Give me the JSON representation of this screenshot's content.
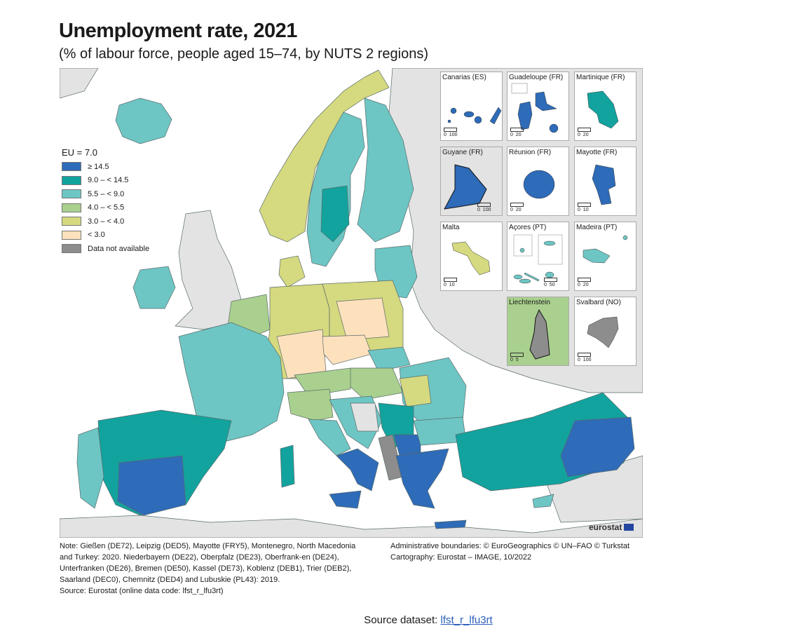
{
  "title": "Unemployment rate, 2021",
  "subtitle": "(% of labour force, people aged 15–74, by NUTS 2 regions)",
  "legend": {
    "header": "EU = 7.0",
    "classes": [
      {
        "label": "≥ 14.5",
        "color": "#2e6bb8"
      },
      {
        "label": "9.0 – < 14.5",
        "color": "#12a39e"
      },
      {
        "label": "5.5 – < 9.0",
        "color": "#6dc6c4"
      },
      {
        "label": "4.0 – < 5.5",
        "color": "#a9d08e"
      },
      {
        "label": "3.0 – < 4.0",
        "color": "#d5d97f"
      },
      {
        "label": "< 3.0",
        "color": "#fde1bd"
      },
      {
        "label": "Data not available",
        "color": "#8d8d8d"
      }
    ]
  },
  "insets": [
    {
      "name": "Canarias (ES)",
      "scale": [
        "0",
        "100"
      ],
      "class": 0
    },
    {
      "name": "Guadeloupe (FR)",
      "scale": [
        "0",
        "20"
      ],
      "class": 0
    },
    {
      "name": "Martinique (FR)",
      "scale": [
        "0",
        "20"
      ],
      "class": 1
    },
    {
      "name": "Guyane (FR)",
      "scale": [
        "0",
        "100"
      ],
      "class": 0
    },
    {
      "name": "Réunion (FR)",
      "scale": [
        "0",
        "20"
      ],
      "class": 0
    },
    {
      "name": "Mayotte (FR)",
      "scale": [
        "0",
        "10"
      ],
      "class": 0
    },
    {
      "name": "Malta",
      "scale": [
        "0",
        "10"
      ],
      "class": 4
    },
    {
      "name": "Açores (PT)",
      "scale": [
        "0",
        "50"
      ],
      "class": 2
    },
    {
      "name": "Madeira (PT)",
      "scale": [
        "0",
        "20"
      ],
      "class": 2
    },
    {
      "name": "Liechtenstein",
      "scale": [
        "0",
        "5"
      ],
      "class": 6
    },
    {
      "name": "Svalbard (NO)",
      "scale": [
        "0",
        "100"
      ],
      "class": 6
    }
  ],
  "logo": "eurostat",
  "notes": "Note: Gießen (DE72), Leipzig (DED5), Mayotte (FRY5), Montenegro, North Macedonia and Turkey: 2020. Niederbayern (DE22), Oberpfalz (DE23), Oberfrank-en (DE24), Unterfranken (DE26), Bremen (DE50), Kassel (DE73), Koblenz (DEB1), Trier (DEB2), Saarland (DEC0), Chemnitz (DED4) and Lubuskie (PL43): 2019.",
  "source_note": "Source: Eurostat (online data code: lfst_r_lfu3rt)",
  "credits": {
    "boundaries": "Administrative boundaries: © EuroGeographics © UN–FAO © Turkstat",
    "cartography": "Cartography: Eurostat – IMAGE, 10/2022"
  },
  "source_dataset": {
    "label": "Source dataset:",
    "link": "lfst_r_lfu3rt"
  }
}
